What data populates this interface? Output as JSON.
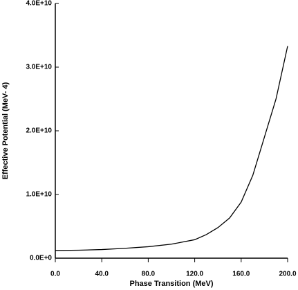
{
  "chart_data": {
    "type": "line",
    "x_label": "Phase Transition (MeV)",
    "y_label": "Effective Potential (MeV- 4)",
    "x": [
      0,
      20,
      40,
      60,
      80,
      100,
      120,
      130,
      140,
      150,
      160,
      170,
      180,
      190,
      200
    ],
    "series": [
      {
        "color": "#000000",
        "values": [
          1200000000,
          1250000000,
          1350000000,
          1550000000,
          1800000000,
          2200000000,
          2900000000,
          3700000000,
          4800000000,
          6300000000,
          8800000000,
          13000000000,
          19000000000,
          25000000000,
          33300000000
        ]
      }
    ],
    "xlim": [
      0,
      200
    ],
    "xticks": [
      {
        "value": 0,
        "label": "0.0"
      },
      {
        "value": 40,
        "label": "40.0"
      },
      {
        "value": 80,
        "label": "80.0"
      },
      {
        "value": 120,
        "label": "120.0"
      },
      {
        "value": 160,
        "label": "160.0"
      },
      {
        "value": 200,
        "label": "200.0"
      }
    ],
    "ylim": [
      0,
      40000000000
    ],
    "yticks": [
      {
        "value": 0,
        "label": "0.0E+0"
      },
      {
        "value": 10000000000,
        "label": "1.0E+10"
      },
      {
        "value": 20000000000,
        "label": "2.0E+10"
      },
      {
        "value": 30000000000,
        "label": "3.0E+10"
      },
      {
        "value": 40000000000,
        "label": "4.0E+10"
      }
    ]
  }
}
